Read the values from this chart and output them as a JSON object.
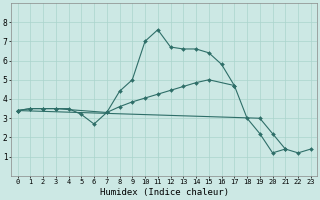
{
  "xlabel": "Humidex (Indice chaleur)",
  "background_color": "#cce8e4",
  "line_color": "#2e6e68",
  "grid_color": "#aad4cc",
  "xlim": [
    -0.5,
    23.5
  ],
  "ylim": [
    0,
    9
  ],
  "xticks": [
    0,
    1,
    2,
    3,
    4,
    5,
    6,
    7,
    8,
    9,
    10,
    11,
    12,
    13,
    14,
    15,
    16,
    17,
    18,
    19,
    20,
    21,
    22,
    23
  ],
  "yticks": [
    1,
    2,
    3,
    4,
    5,
    6,
    7,
    8
  ],
  "line1_x": [
    0,
    1,
    2,
    3,
    4,
    5,
    6,
    7,
    8,
    9,
    10,
    11,
    12,
    13,
    14,
    15,
    16,
    17,
    18,
    19,
    20,
    21,
    22
  ],
  "line1_y": [
    3.4,
    3.5,
    3.5,
    3.5,
    3.5,
    3.2,
    2.7,
    3.3,
    4.4,
    5.0,
    7.0,
    7.6,
    6.7,
    6.6,
    6.6,
    6.4,
    5.8,
    4.7,
    3.0,
    2.2,
    1.2,
    1.4,
    null
  ],
  "line2_x": [
    0,
    1,
    2,
    3,
    7,
    8,
    9,
    10,
    11,
    12,
    13,
    14,
    15,
    17
  ],
  "line2_y": [
    3.4,
    3.5,
    3.5,
    3.5,
    3.3,
    3.6,
    3.85,
    4.05,
    4.25,
    4.45,
    4.65,
    4.85,
    5.0,
    4.7
  ],
  "line3_x": [
    0,
    19,
    20,
    21,
    22,
    23
  ],
  "line3_y": [
    3.4,
    3.0,
    2.2,
    1.4,
    1.2,
    1.4
  ],
  "figsize": [
    3.2,
    2.0
  ],
  "dpi": 100,
  "xlabel_fontsize": 6.5,
  "tick_fontsize": 5.0,
  "linewidth": 0.8,
  "markersize": 2.0
}
